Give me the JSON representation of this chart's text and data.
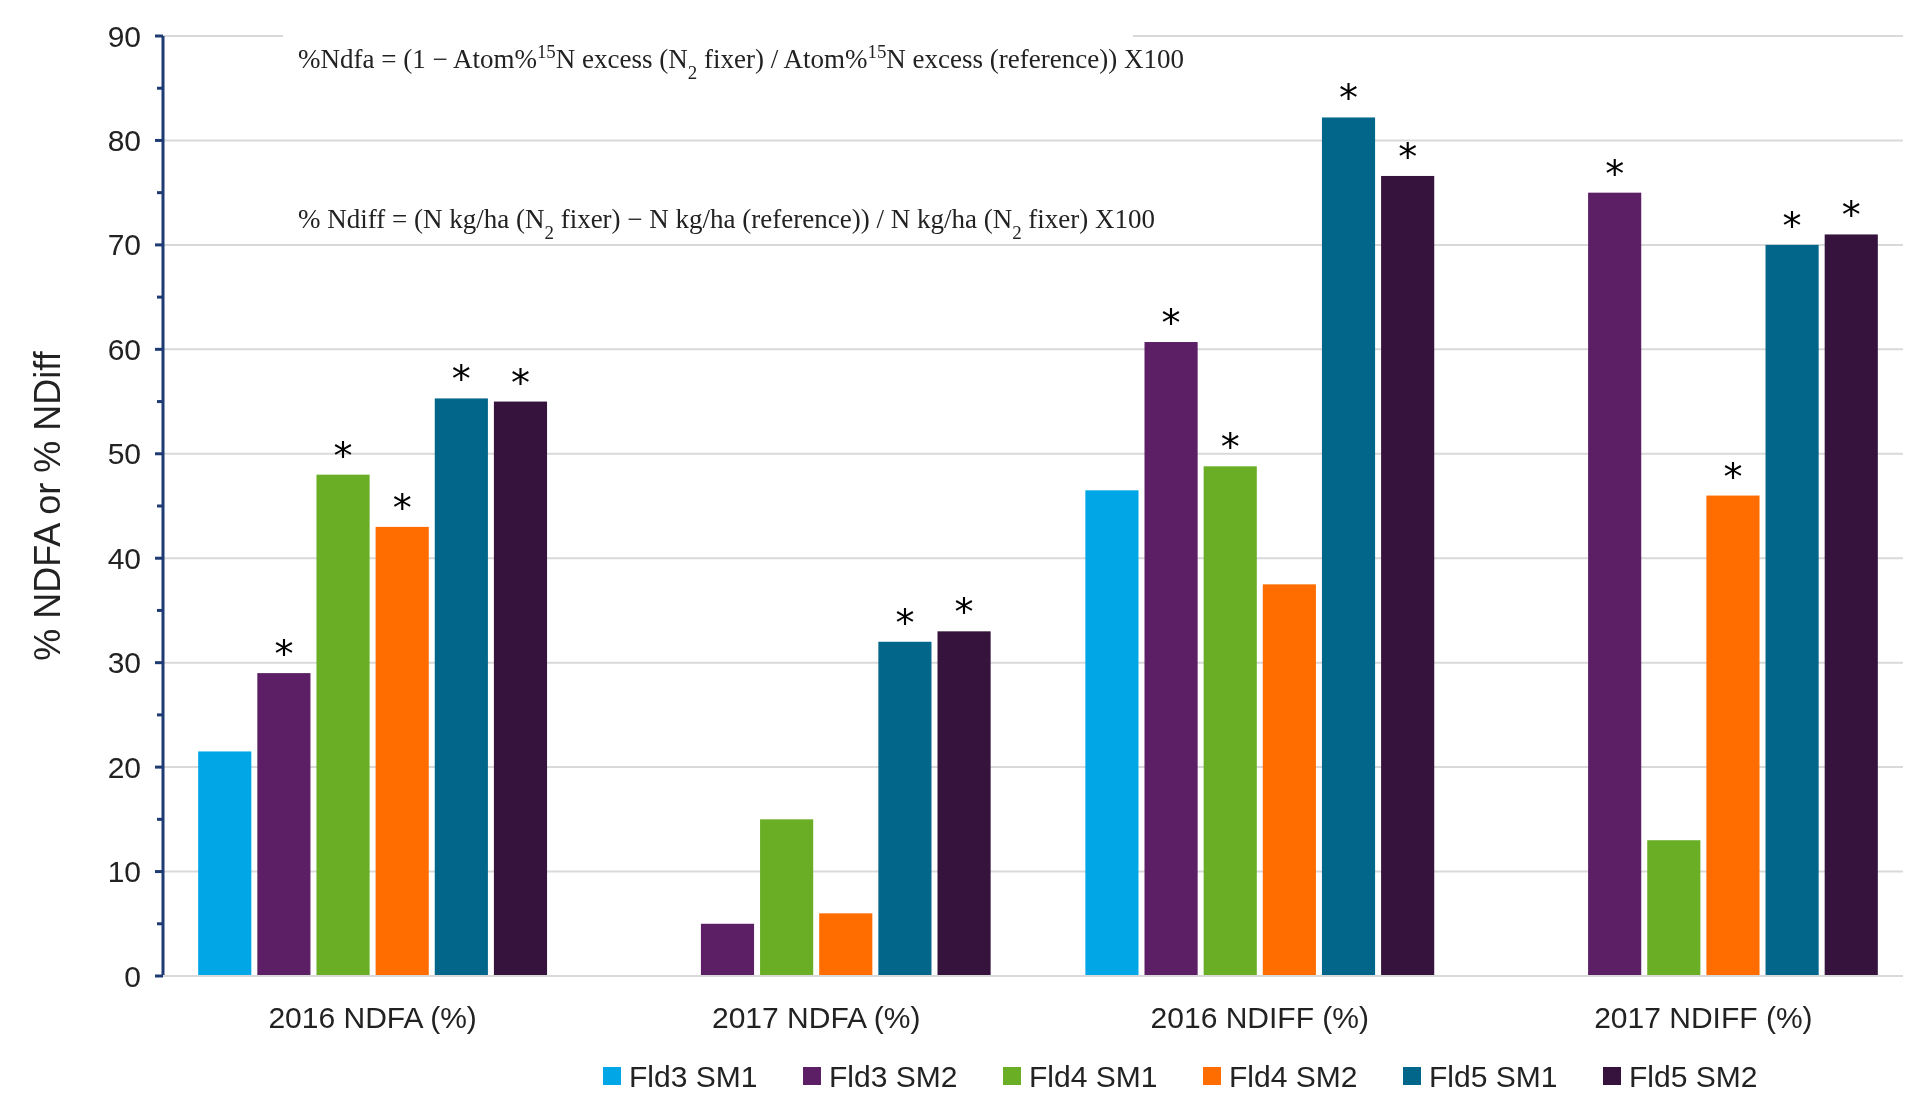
{
  "chart_data": {
    "type": "bar",
    "ylabel": "% NDFA or % NDiff",
    "categories": [
      "2016 NDFA (%)",
      "2017 NDFA (%)",
      "2016 NDIFF (%)",
      "2017 NDIFF (%)"
    ],
    "series": [
      {
        "name": "Fld3 SM1",
        "color": "#00a6e6",
        "values": [
          21.5,
          null,
          46.5,
          null
        ],
        "value_labels": [
          null,
          null,
          null,
          null
        ]
      },
      {
        "name": "Fld3 SM2",
        "color": "#5c1f66",
        "values": [
          29,
          5,
          60.7,
          75
        ],
        "value_labels": [
          "*",
          null,
          "*",
          "*"
        ]
      },
      {
        "name": "Fld4 SM1",
        "color": "#6aae25",
        "values": [
          48,
          15,
          48.8,
          13
        ],
        "value_labels": [
          "*",
          null,
          "*",
          null
        ]
      },
      {
        "name": "Fld4 SM2",
        "color": "#ff6d00",
        "values": [
          43,
          6,
          37.5,
          46
        ],
        "value_labels": [
          "*",
          null,
          null,
          "*"
        ]
      },
      {
        "name": "Fld5 SM1",
        "color": "#02658a",
        "values": [
          55.3,
          32,
          82.2,
          70
        ],
        "value_labels": [
          "*",
          "*",
          "*",
          "*"
        ]
      },
      {
        "name": "Fld5 SM2",
        "color": "#35133d",
        "values": [
          55,
          33,
          76.6,
          71
        ],
        "value_labels": [
          "*",
          "*",
          "*",
          "*"
        ]
      }
    ],
    "ylim": [
      0,
      90
    ],
    "yticks": [
      0,
      10,
      20,
      30,
      40,
      50,
      60,
      70,
      80,
      90
    ],
    "grid": "y",
    "legend": "bottom",
    "annotations": [
      "%Ndfa = (1 − Atom%$^{15}$N excess (N$_{2}$ fixer) / Atom%$^{15}$N excess (reference)) X100",
      "% Ndiff = (N kg/ha (N$_{2}$ fixer) − N kg/ha (reference)) / N kg/ha (N$_{2}$ fixer) X100"
    ]
  }
}
